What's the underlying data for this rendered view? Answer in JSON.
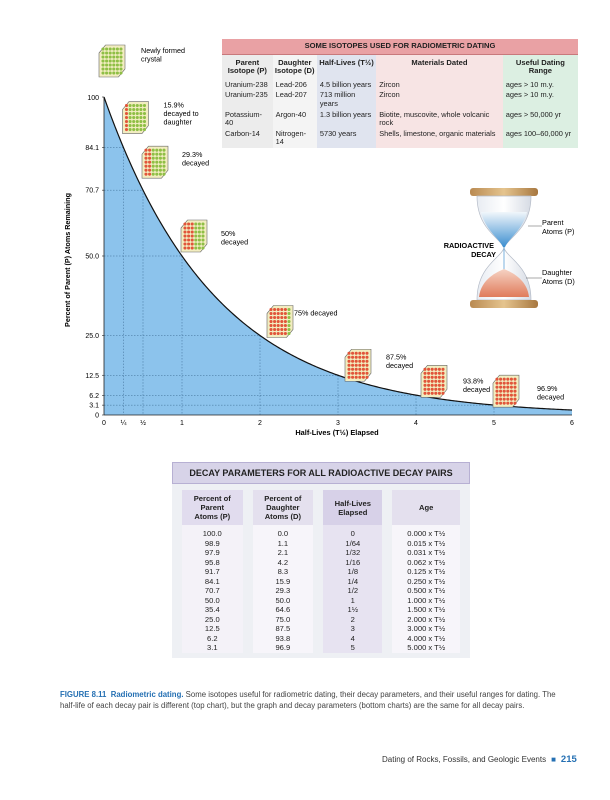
{
  "chart_data": {
    "type": "line",
    "xlabel": "Half-Lives (T½) Elapsed",
    "ylabel": "Percent of Parent (P) Atoms Remaining",
    "xlim": [
      0,
      6
    ],
    "ylim": [
      0,
      100
    ],
    "x_ticks": [
      {
        "v": 0,
        "t": "0"
      },
      {
        "v": 0.25,
        "t": "¼"
      },
      {
        "v": 0.5,
        "t": "½"
      },
      {
        "v": 1,
        "t": "1"
      },
      {
        "v": 2,
        "t": "2"
      },
      {
        "v": 3,
        "t": "3"
      },
      {
        "v": 4,
        "t": "4"
      },
      {
        "v": 5,
        "t": "5"
      },
      {
        "v": 6,
        "t": "6"
      }
    ],
    "y_ticks": [
      {
        "v": 0,
        "t": "0"
      },
      {
        "v": 3.1,
        "t": "3.1"
      },
      {
        "v": 6.2,
        "t": "6.2"
      },
      {
        "v": 12.5,
        "t": "12.5"
      },
      {
        "v": 25,
        "t": "25.0"
      },
      {
        "v": 50,
        "t": "50.0"
      },
      {
        "v": 70.7,
        "t": "70.7"
      },
      {
        "v": 84.1,
        "t": "84.1"
      },
      {
        "v": 100,
        "t": "100"
      }
    ],
    "curve": "y = 100 * 0.5^x",
    "grid_points": [
      {
        "x": 0.25,
        "y": 84.1
      },
      {
        "x": 0.5,
        "y": 70.7
      },
      {
        "x": 1,
        "y": 50
      },
      {
        "x": 2,
        "y": 25
      },
      {
        "x": 3,
        "y": 12.5
      },
      {
        "x": 4,
        "y": 6.2
      },
      {
        "x": 5,
        "y": 3.1
      }
    ],
    "annotations": [
      {
        "x": 0,
        "y": 100,
        "text": [
          "Newly formed",
          "crystal"
        ],
        "decayed": 0
      },
      {
        "x": 0.25,
        "y": 84.1,
        "text": [
          "15.9%",
          "decayed to",
          "daughter"
        ],
        "decayed": 0.159
      },
      {
        "x": 0.5,
        "y": 70.7,
        "text": [
          "29.3%",
          "decayed"
        ],
        "decayed": 0.293
      },
      {
        "x": 1,
        "y": 50,
        "text": [
          "50%",
          "decayed"
        ],
        "decayed": 0.5
      },
      {
        "x": 2,
        "y": 25,
        "text": [
          "75% decayed"
        ],
        "decayed": 0.75
      },
      {
        "x": 3,
        "y": 12.5,
        "text": [
          "87.5%",
          "decayed"
        ],
        "decayed": 0.875
      },
      {
        "x": 4,
        "y": 6.2,
        "text": [
          "93.8%",
          "decayed"
        ],
        "decayed": 0.938
      },
      {
        "x": 5,
        "y": 3.1,
        "text": [
          "96.9%",
          "decayed"
        ],
        "decayed": 0.969
      }
    ]
  },
  "hourglass": {
    "title": [
      "RADIOACTIVE",
      "DECAY"
    ],
    "parent_label": [
      "Parent",
      "Atoms (P)"
    ],
    "daughter_label": [
      "Daughter",
      "Atoms (D)"
    ]
  },
  "isotope_table": {
    "title": "SOME ISOTOPES USED FOR RADIOMETRIC DATING",
    "headers": [
      [
        "Parent",
        "Isotope (P)"
      ],
      [
        "Daughter",
        "Isotope (D)"
      ],
      [
        "Half-Lives (T½)"
      ],
      [
        "Materials Dated"
      ],
      [
        "Useful Dating Range"
      ]
    ],
    "rows": [
      [
        "Uranium-238",
        "Lead-206",
        "4.5 billion years",
        "Zircon",
        "ages > 10 m.y."
      ],
      [
        "Uranium-235",
        "Lead-207",
        "713 million years",
        "Zircon",
        "ages > 10 m.y."
      ],
      [
        "Potassium-40",
        "Argon-40",
        "1.3 billion years",
        "Biotite, muscovite, whole volcanic rock",
        "ages > 50,000 yr"
      ],
      [
        "Carbon-14",
        "Nitrogen-14",
        "5730 years",
        "Shells, limestone, organic materials",
        "ages 100–60,000 yr"
      ]
    ]
  },
  "decay_table": {
    "title": "DECAY PARAMETERS FOR ALL RADIOACTIVE DECAY PAIRS",
    "headers": [
      [
        "Percent of",
        "Parent",
        "Atoms (P)"
      ],
      [
        "Percent of",
        "Daughter",
        "Atoms (D)"
      ],
      [
        "Half-Lives",
        "Elapsed"
      ],
      [
        "Age"
      ]
    ],
    "rows": [
      [
        "100.0",
        "0.0",
        "0",
        "0.000 x T½"
      ],
      [
        "98.9",
        "1.1",
        "1/64",
        "0.015 x T½"
      ],
      [
        "97.9",
        "2.1",
        "1/32",
        "0.031 x T½"
      ],
      [
        "95.8",
        "4.2",
        "1/16",
        "0.062 x T½"
      ],
      [
        "91.7",
        "8.3",
        "1/8",
        "0.125 x T½"
      ],
      [
        "84.1",
        "15.9",
        "1/4",
        "0.250 x T½"
      ],
      [
        "70.7",
        "29.3",
        "1/2",
        "0.500 x T½"
      ],
      [
        "50.0",
        "50.0",
        "1",
        "1.000 x T½"
      ],
      [
        "35.4",
        "64.6",
        "1½",
        "1.500 x T½"
      ],
      [
        "25.0",
        "75.0",
        "2",
        "2.000 x T½"
      ],
      [
        "12.5",
        "87.5",
        "3",
        "3.000 x T½"
      ],
      [
        "6.2",
        "93.8",
        "4",
        "4.000 x T½"
      ],
      [
        "3.1",
        "96.9",
        "5",
        "5.000 x T½"
      ]
    ]
  },
  "caption": {
    "label": "FIGURE 8.11",
    "title": "Radiometric dating.",
    "text": "Some isotopes useful for radiometric dating, their decay parameters, and their useful ranges for dating. The half-life of each decay pair is different (top chart), but the graph and decay parameters (bottom charts) are the same for all decay pairs."
  },
  "footer": {
    "section": "Dating of Rocks, Fossils, and Geologic Events",
    "bullet": "■",
    "page": "215"
  },
  "colors": {
    "fill": "#8cc3ec",
    "curve": "#111111",
    "parent_atom": "#8fbf45",
    "daughter_atom": "#e1553a",
    "crystal": "#f2edc0"
  }
}
